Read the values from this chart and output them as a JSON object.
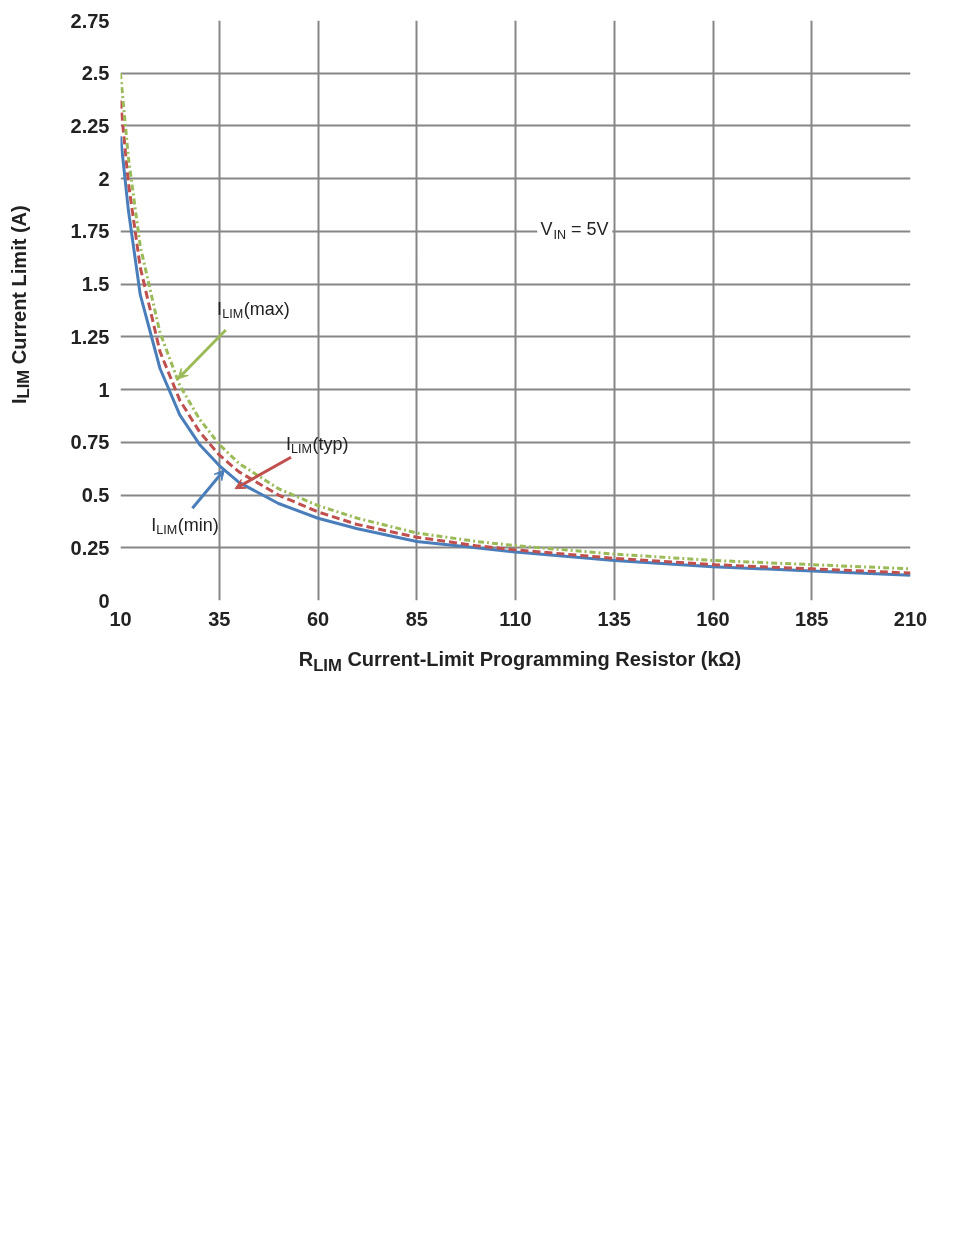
{
  "chart_data": {
    "type": "line",
    "xlabel": "R$_{LIM}$ Current-Limit Programming Resistor (kΩ)",
    "ylabel": "I$_{LIM}$ Current Limit (A)",
    "x": [
      10,
      12,
      15,
      20,
      25,
      30,
      35,
      40,
      50,
      60,
      70,
      85,
      100,
      110,
      135,
      160,
      185,
      210
    ],
    "series": [
      {
        "color": "#4a7ebb",
        "line_style": "solid",
        "values": [
          2.2,
          1.85,
          1.45,
          1.1,
          0.88,
          0.74,
          0.64,
          0.56,
          0.46,
          0.39,
          0.34,
          0.28,
          0.25,
          0.23,
          0.19,
          0.16,
          0.14,
          0.12
        ]
      },
      {
        "color": "#c0504d",
        "line_style": "dashed",
        "values": [
          2.37,
          1.98,
          1.58,
          1.18,
          0.95,
          0.8,
          0.69,
          0.61,
          0.5,
          0.42,
          0.36,
          0.3,
          0.26,
          0.24,
          0.2,
          0.17,
          0.15,
          0.13
        ]
      },
      {
        "color": "#9bbb59",
        "line_style": "dotted",
        "values": [
          2.5,
          2.1,
          1.68,
          1.27,
          1.02,
          0.86,
          0.74,
          0.65,
          0.53,
          0.45,
          0.39,
          0.32,
          0.28,
          0.26,
          0.22,
          0.19,
          0.17,
          0.15
        ]
      }
    ],
    "annotations": [
      {
        "text": "I$_{LIM}$(min)",
        "x": 36.3,
        "y": 0.62
      },
      {
        "text": "I$_{LIM}$(typ)",
        "x": 39,
        "y": 0.53
      },
      {
        "text": "I$_{LIM}$(max)",
        "x": 24.5,
        "y": 1.05
      },
      "V$_{IN}$ = 5V"
    ],
    "xlim": [
      10,
      210
    ],
    "xticks": [
      10,
      35,
      60,
      85,
      110,
      135,
      160,
      185,
      210
    ],
    "ylim": [
      0,
      2.75
    ],
    "yticks": [
      0,
      0.25,
      0.5,
      0.75,
      1,
      1.25,
      1.5,
      1.75,
      2,
      2.25,
      2.5,
      2.75
    ],
    "grid": true,
    "marker": "none"
  }
}
